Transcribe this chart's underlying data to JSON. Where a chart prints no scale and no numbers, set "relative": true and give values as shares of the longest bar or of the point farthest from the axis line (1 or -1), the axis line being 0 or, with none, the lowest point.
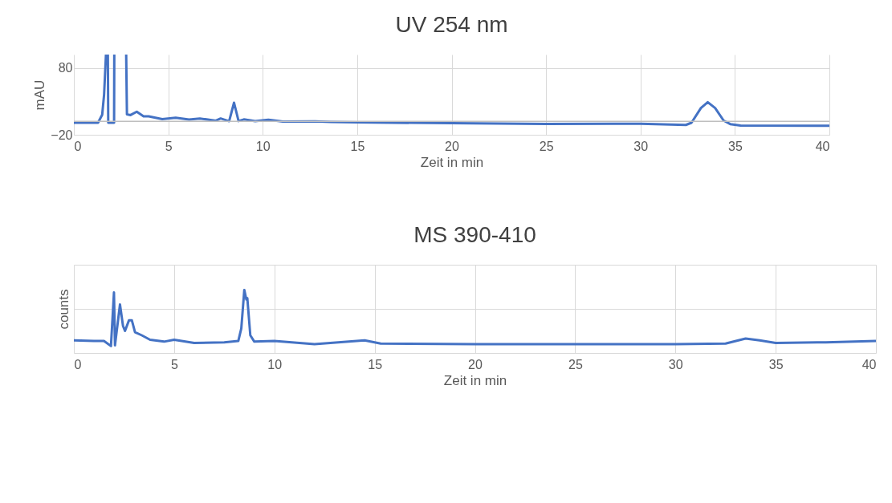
{
  "chart_data": [
    {
      "type": "line",
      "title": "UV 254 nm",
      "xlabel": "Zeit in min",
      "ylabel": "mAU",
      "x": [
        0,
        1.28,
        1.5,
        1.6,
        1.7,
        1.8,
        1.82,
        2.13,
        2.14,
        2.4,
        2.77,
        2.81,
        3.0,
        3.33,
        3.69,
        3.96,
        4.68,
        5.39,
        6.1,
        6.67,
        7.52,
        7.77,
        8.22,
        8.48,
        8.72,
        9.0,
        9.6,
        10.3,
        11.06,
        12.77,
        13.6,
        15,
        20,
        25,
        30,
        32.4,
        32.7,
        33.2,
        33.56,
        33.95,
        34.4,
        34.75,
        35.3,
        40
      ],
      "series": [
        {
          "color": "#4472c4",
          "values": [
            -2,
            -2,
            10,
            40,
            100,
            100,
            -2,
            -2,
            100,
            null,
            100,
            10.5,
            9.5,
            14.5,
            7.7,
            7.5,
            3.5,
            5.6,
            2.8,
            4.4,
            1.1,
            4.4,
            0.3,
            28,
            0.5,
            3,
            0.4,
            2.5,
            -0.3,
            0,
            -0.8,
            -1.5,
            -2.7,
            -3.8,
            -3.5,
            -5.3,
            -2,
            20,
            28.8,
            20,
            1.3,
            -4,
            -6.3,
            -6.5
          ]
        }
      ],
      "xlim": [
        0,
        40
      ],
      "xticks": [
        0,
        5,
        10,
        15,
        20,
        25,
        30,
        35,
        40
      ],
      "ylim": [
        -20,
        100
      ],
      "yticks": [
        -20,
        80
      ],
      "grid": true,
      "marker": "none",
      "line_style": "solid",
      "ref_lines": [
        {
          "axis": "y",
          "value": 0,
          "color": "#bfbfbf"
        }
      ]
    },
    {
      "type": "line",
      "title": "MS 390-410",
      "xlabel": "Zeit in min",
      "ylabel": "counts",
      "relative": true,
      "x": [
        0,
        1.0,
        1.5,
        1.85,
        2.0,
        2.05,
        2.3,
        2.45,
        2.55,
        2.75,
        2.89,
        3.05,
        3.39,
        3.8,
        4.5,
        5.0,
        6.0,
        7.5,
        8.2,
        8.35,
        8.5,
        8.6,
        8.65,
        8.8,
        9.0,
        10,
        12,
        14.5,
        15.3,
        20,
        25,
        30,
        32.5,
        33.5,
        34.2,
        35,
        37.5,
        40
      ],
      "series": [
        {
          "color": "#4472c4",
          "values": [
            0.2,
            0.19,
            0.19,
            0.11,
            0.96,
            0.12,
            0.77,
            0.43,
            0.35,
            0.52,
            0.52,
            0.33,
            0.28,
            0.21,
            0.18,
            0.21,
            0.16,
            0.17,
            0.19,
            0.39,
            1,
            0.85,
            0.87,
            0.28,
            0.18,
            0.19,
            0.14,
            0.2,
            0.15,
            0.14,
            0.14,
            0.14,
            0.15,
            0.23,
            0.2,
            0.16,
            0.17,
            0.19
          ]
        }
      ],
      "xlim": [
        0,
        40
      ],
      "xticks": [
        0,
        5,
        10,
        15,
        20,
        25,
        30,
        35,
        40
      ],
      "grid": true,
      "marker": "none",
      "line_style": "solid"
    }
  ]
}
